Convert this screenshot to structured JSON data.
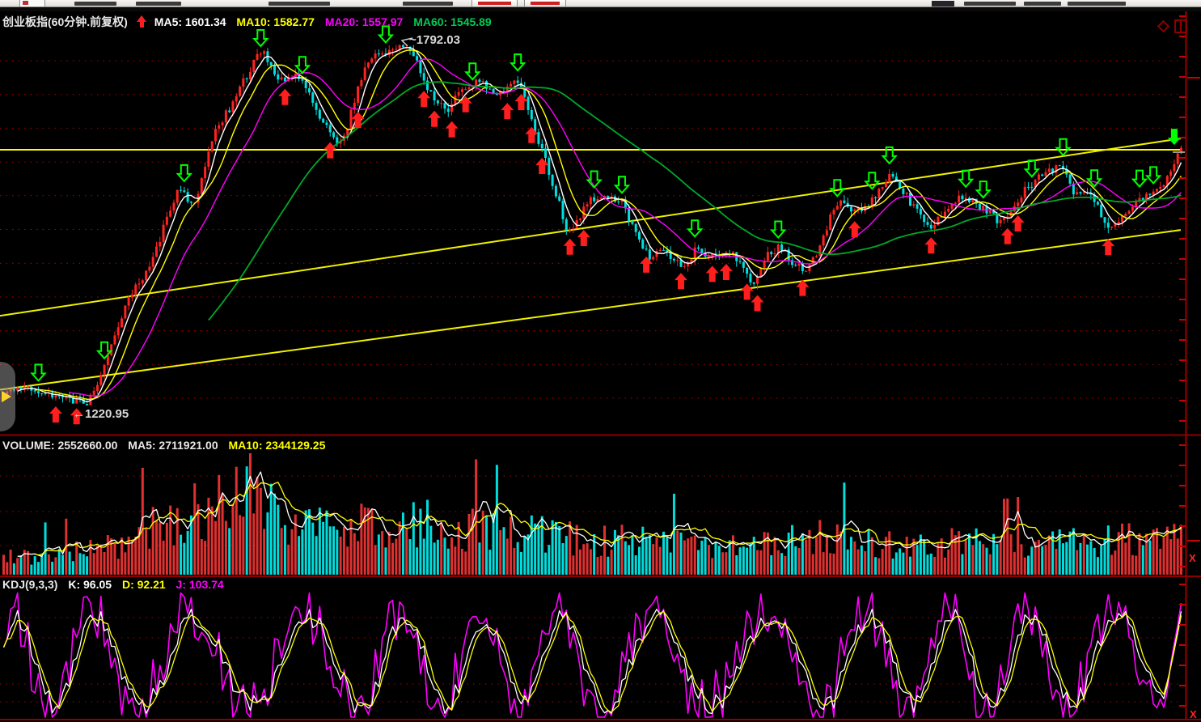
{
  "main_chart": {
    "title": "创业板指(60分钟.前复权)",
    "ma_labels": [
      {
        "text": "MA5: 1601.34",
        "color": "#e8e8e8"
      },
      {
        "text": "MA10: 1582.77",
        "color": "#ffff00"
      },
      {
        "text": "MA20: 1557.97",
        "color": "#ff00ff"
      },
      {
        "text": "MA60: 1545.89",
        "color": "#00cc55"
      }
    ],
    "annotations": {
      "high": "~1792.03",
      "low": "←1220.95"
    }
  },
  "volume_panel": {
    "labels": [
      {
        "text": "VOLUME: 2552660.00",
        "color": "#e8e8e8"
      },
      {
        "text": "MA5: 2711921.00",
        "color": "#e8e8e8"
      },
      {
        "text": "MA10: 2344129.25",
        "color": "#ffff00"
      }
    ],
    "close_x": "X"
  },
  "kdj_panel": {
    "labels": [
      {
        "text": "KDJ(9,3,3)",
        "color": "#e8e8e8"
      },
      {
        "text": "K: 96.05",
        "color": "#ffffff"
      },
      {
        "text": "D: 92.21",
        "color": "#ffff00"
      },
      {
        "text": "J: 103.74",
        "color": "#ff00ff"
      }
    ],
    "close_x": "X"
  },
  "chart_data": {
    "type": "candlestick",
    "instrument": "创业板指",
    "period": "60分钟",
    "adjustment": "前复权",
    "visible_range": {
      "high": 1792.03,
      "low": 1220.95
    },
    "indicators": {
      "price_ma": {
        "MA5": 1601.34,
        "MA10": 1582.77,
        "MA20": 1557.97,
        "MA60": 1545.89
      },
      "volume": {
        "VOLUME": 2552660.0,
        "MA5": 2711921.0,
        "MA10": 2344129.25
      },
      "kdj": {
        "params": [
          9,
          3,
          3
        ],
        "K": 96.05,
        "D": 92.21,
        "J": 103.74
      }
    },
    "series_colors": {
      "ma5": "#ffffff",
      "ma10": "#ffff00",
      "ma20": "#ff00ff",
      "ma60": "#00a828",
      "up": "#ff2222",
      "down": "#00e0e0",
      "grid": "#b00000",
      "frame": "#9a0000",
      "trend": "#f0f000",
      "buy_arrow": "#ff1e1e",
      "sell_arrow": "#00ff00"
    },
    "bars": 340,
    "seed": 9,
    "price_anchors": [
      [
        0,
        1234
      ],
      [
        0.027,
        1243
      ],
      [
        0.045,
        1231
      ],
      [
        0.063,
        1224
      ],
      [
        0.072,
        1221
      ],
      [
        0.09,
        1300
      ],
      [
        0.105,
        1390
      ],
      [
        0.12,
        1420
      ],
      [
        0.14,
        1520
      ],
      [
        0.15,
        1566
      ],
      [
        0.161,
        1528
      ],
      [
        0.178,
        1650
      ],
      [
        0.195,
        1700
      ],
      [
        0.207,
        1745
      ],
      [
        0.219,
        1786
      ],
      [
        0.233,
        1733
      ],
      [
        0.253,
        1740
      ],
      [
        0.268,
        1680
      ],
      [
        0.281,
        1640
      ],
      [
        0.288,
        1632
      ],
      [
        0.3,
        1720
      ],
      [
        0.308,
        1762
      ],
      [
        0.322,
        1780
      ],
      [
        0.336,
        1789
      ],
      [
        0.345,
        1786
      ],
      [
        0.356,
        1738
      ],
      [
        0.368,
        1700
      ],
      [
        0.377,
        1688
      ],
      [
        0.392,
        1724
      ],
      [
        0.405,
        1732
      ],
      [
        0.418,
        1705
      ],
      [
        0.43,
        1732
      ],
      [
        0.438,
        1736
      ],
      [
        0.449,
        1664
      ],
      [
        0.457,
        1624
      ],
      [
        0.468,
        1560
      ],
      [
        0.479,
        1494
      ],
      [
        0.49,
        1520
      ],
      [
        0.5,
        1545
      ],
      [
        0.515,
        1548
      ],
      [
        0.527,
        1538
      ],
      [
        0.538,
        1480
      ],
      [
        0.548,
        1452
      ],
      [
        0.558,
        1470
      ],
      [
        0.568,
        1445
      ],
      [
        0.578,
        1440
      ],
      [
        0.59,
        1468
      ],
      [
        0.6,
        1455
      ],
      [
        0.612,
        1462
      ],
      [
        0.625,
        1450
      ],
      [
        0.637,
        1410
      ],
      [
        0.65,
        1458
      ],
      [
        0.66,
        1470
      ],
      [
        0.672,
        1440
      ],
      [
        0.683,
        1432
      ],
      [
        0.695,
        1480
      ],
      [
        0.707,
        1540
      ],
      [
        0.72,
        1530
      ],
      [
        0.73,
        1528
      ],
      [
        0.742,
        1555
      ],
      [
        0.753,
        1584
      ],
      [
        0.763,
        1560
      ],
      [
        0.775,
        1528
      ],
      [
        0.788,
        1500
      ],
      [
        0.8,
        1530
      ],
      [
        0.812,
        1552
      ],
      [
        0.825,
        1540
      ],
      [
        0.835,
        1528
      ],
      [
        0.845,
        1508
      ],
      [
        0.855,
        1520
      ],
      [
        0.866,
        1558
      ],
      [
        0.876,
        1576
      ],
      [
        0.886,
        1588
      ],
      [
        0.898,
        1598
      ],
      [
        0.908,
        1560
      ],
      [
        0.918,
        1552
      ],
      [
        0.927,
        1546
      ],
      [
        0.938,
        1494
      ],
      [
        0.95,
        1520
      ],
      [
        0.962,
        1542
      ],
      [
        0.973,
        1552
      ],
      [
        0.985,
        1570
      ],
      [
        0.993,
        1604
      ],
      [
        1,
        1630
      ]
    ],
    "trendlines": [
      {
        "kind": "horizontal",
        "price": 1624.0
      },
      {
        "kind": "segment",
        "from": [
          0.0,
          1359.0
        ],
        "to": [
          1.0,
          1642.0
        ]
      },
      {
        "kind": "segment",
        "from": [
          0.0,
          1241.0
        ],
        "to": [
          1.0,
          1496.0
        ]
      }
    ],
    "signal_markers": {
      "buy_x": [
        0.0445,
        0.0616,
        0.2397,
        0.2774,
        0.3014,
        0.3562,
        0.3664,
        0.3801,
        0.3938,
        0.4281,
        0.4384,
        0.4486,
        0.4575,
        0.4795,
        0.4918,
        0.5445,
        0.5753,
        0.6014,
        0.613,
        0.6301,
        0.6404,
        0.678,
        0.7226,
        0.7877,
        0.8527,
        0.8616,
        0.9384
      ],
      "sell_x": [
        0.0308,
        0.087,
        0.1521,
        0.2192,
        0.2548,
        0.3233,
        0.3986,
        0.437,
        0.5,
        0.526,
        0.5856,
        0.6589,
        0.7068,
        0.7377,
        0.7534,
        0.8184,
        0.8322,
        0.8733,
        0.8986,
        0.926,
        0.9644,
        0.976
      ],
      "sell_solid_x": [
        0.9945
      ]
    },
    "volume_anchors": [
      [
        0,
        22
      ],
      [
        0.05,
        26
      ],
      [
        0.09,
        34
      ],
      [
        0.13,
        58
      ],
      [
        0.16,
        76
      ],
      [
        0.19,
        88
      ],
      [
        0.21,
        92
      ],
      [
        0.24,
        66
      ],
      [
        0.28,
        56
      ],
      [
        0.31,
        64
      ],
      [
        0.34,
        70
      ],
      [
        0.38,
        58
      ],
      [
        0.42,
        52
      ],
      [
        0.46,
        48
      ],
      [
        0.5,
        44
      ],
      [
        0.55,
        40
      ],
      [
        0.6,
        36
      ],
      [
        0.65,
        42
      ],
      [
        0.7,
        46
      ],
      [
        0.75,
        38
      ],
      [
        0.8,
        42
      ],
      [
        0.85,
        36
      ],
      [
        0.9,
        40
      ],
      [
        0.95,
        44
      ],
      [
        1,
        48
      ]
    ]
  }
}
